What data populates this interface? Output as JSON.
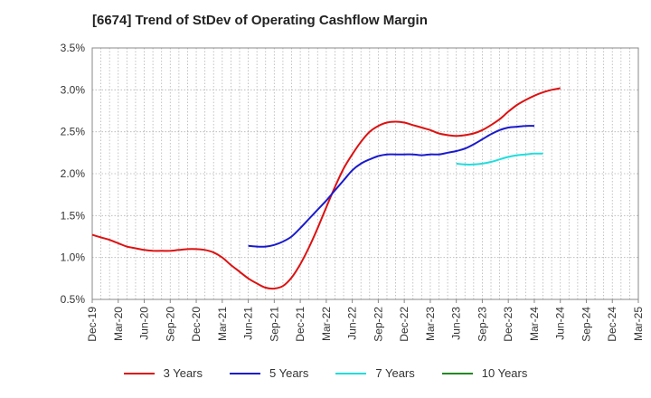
{
  "chart_data": {
    "type": "line",
    "title": "[6674]  Trend of StDev of Operating Cashflow Margin",
    "xlabel": "",
    "ylabel": "",
    "ylim": [
      0.5,
      3.5
    ],
    "yticks": [
      "0.5%",
      "1.0%",
      "1.5%",
      "2.0%",
      "2.5%",
      "3.0%",
      "3.5%"
    ],
    "categories": [
      "Dec-19",
      "Mar-20",
      "Jun-20",
      "Sep-20",
      "Dec-20",
      "Mar-21",
      "Jun-21",
      "Sep-21",
      "Dec-21",
      "Mar-22",
      "Jun-22",
      "Sep-22",
      "Dec-22",
      "Mar-23",
      "Jun-23",
      "Sep-23",
      "Dec-23",
      "Mar-24",
      "Jun-24",
      "Sep-24",
      "Dec-24",
      "Mar-25"
    ],
    "grid": true,
    "legend_position": "bottom",
    "series": [
      {
        "name": "3 Years",
        "color": "#dd1111",
        "points": [
          [
            "Dec-19",
            1.27
          ],
          [
            "Jan-20",
            1.24
          ],
          [
            "Feb-20",
            1.21
          ],
          [
            "Mar-20",
            1.17
          ],
          [
            "Apr-20",
            1.13
          ],
          [
            "May-20",
            1.11
          ],
          [
            "Jun-20",
            1.09
          ],
          [
            "Jul-20",
            1.08
          ],
          [
            "Aug-20",
            1.08
          ],
          [
            "Sep-20",
            1.08
          ],
          [
            "Oct-20",
            1.09
          ],
          [
            "Nov-20",
            1.1
          ],
          [
            "Dec-20",
            1.1
          ],
          [
            "Jan-21",
            1.09
          ],
          [
            "Feb-21",
            1.06
          ],
          [
            "Mar-21",
            1.0
          ],
          [
            "Apr-21",
            0.91
          ],
          [
            "May-21",
            0.83
          ],
          [
            "Jun-21",
            0.75
          ],
          [
            "Jul-21",
            0.69
          ],
          [
            "Aug-21",
            0.64
          ],
          [
            "Sep-21",
            0.63
          ],
          [
            "Oct-21",
            0.66
          ],
          [
            "Nov-21",
            0.76
          ],
          [
            "Dec-21",
            0.92
          ],
          [
            "Jan-22",
            1.12
          ],
          [
            "Feb-22",
            1.35
          ],
          [
            "Mar-22",
            1.6
          ],
          [
            "Apr-22",
            1.84
          ],
          [
            "May-22",
            2.06
          ],
          [
            "Jun-22",
            2.23
          ],
          [
            "Jul-22",
            2.38
          ],
          [
            "Aug-22",
            2.5
          ],
          [
            "Sep-22",
            2.57
          ],
          [
            "Oct-22",
            2.61
          ],
          [
            "Nov-22",
            2.62
          ],
          [
            "Dec-22",
            2.61
          ],
          [
            "Jan-23",
            2.58
          ],
          [
            "Feb-23",
            2.55
          ],
          [
            "Mar-23",
            2.52
          ],
          [
            "Apr-23",
            2.48
          ],
          [
            "May-23",
            2.46
          ],
          [
            "Jun-23",
            2.45
          ],
          [
            "Jul-23",
            2.46
          ],
          [
            "Aug-23",
            2.48
          ],
          [
            "Sep-23",
            2.52
          ],
          [
            "Oct-23",
            2.58
          ],
          [
            "Nov-23",
            2.65
          ],
          [
            "Dec-23",
            2.74
          ],
          [
            "Jan-24",
            2.82
          ],
          [
            "Feb-24",
            2.88
          ],
          [
            "Mar-24",
            2.93
          ],
          [
            "Apr-24",
            2.97
          ],
          [
            "May-24",
            3.0
          ],
          [
            "Jun-24",
            3.02
          ]
        ]
      },
      {
        "name": "5 Years",
        "color": "#1a1acc",
        "points": [
          [
            "Jun-21",
            1.14
          ],
          [
            "Jul-21",
            1.13
          ],
          [
            "Aug-21",
            1.13
          ],
          [
            "Sep-21",
            1.15
          ],
          [
            "Oct-21",
            1.19
          ],
          [
            "Nov-21",
            1.25
          ],
          [
            "Dec-21",
            1.35
          ],
          [
            "Jan-22",
            1.46
          ],
          [
            "Feb-22",
            1.57
          ],
          [
            "Mar-22",
            1.68
          ],
          [
            "Apr-22",
            1.8
          ],
          [
            "May-22",
            1.92
          ],
          [
            "Jun-22",
            2.04
          ],
          [
            "Jul-22",
            2.12
          ],
          [
            "Aug-22",
            2.17
          ],
          [
            "Sep-22",
            2.21
          ],
          [
            "Oct-22",
            2.23
          ],
          [
            "Nov-22",
            2.23
          ],
          [
            "Dec-22",
            2.23
          ],
          [
            "Jan-23",
            2.23
          ],
          [
            "Feb-23",
            2.22
          ],
          [
            "Mar-23",
            2.23
          ],
          [
            "Apr-23",
            2.23
          ],
          [
            "May-23",
            2.25
          ],
          [
            "Jun-23",
            2.27
          ],
          [
            "Jul-23",
            2.3
          ],
          [
            "Aug-23",
            2.35
          ],
          [
            "Sep-23",
            2.41
          ],
          [
            "Oct-23",
            2.47
          ],
          [
            "Nov-23",
            2.52
          ],
          [
            "Dec-23",
            2.55
          ],
          [
            "Jan-24",
            2.56
          ],
          [
            "Feb-24",
            2.57
          ],
          [
            "Mar-24",
            2.57
          ]
        ]
      },
      {
        "name": "7 Years",
        "color": "#22dddd",
        "points": [
          [
            "Jun-23",
            2.12
          ],
          [
            "Jul-23",
            2.11
          ],
          [
            "Aug-23",
            2.11
          ],
          [
            "Sep-23",
            2.12
          ],
          [
            "Oct-23",
            2.14
          ],
          [
            "Nov-23",
            2.17
          ],
          [
            "Dec-23",
            2.2
          ],
          [
            "Jan-24",
            2.22
          ],
          [
            "Feb-24",
            2.23
          ],
          [
            "Mar-24",
            2.24
          ],
          [
            "Apr-24",
            2.24
          ]
        ]
      },
      {
        "name": "10 Years",
        "color": "#228822",
        "points": []
      }
    ]
  }
}
